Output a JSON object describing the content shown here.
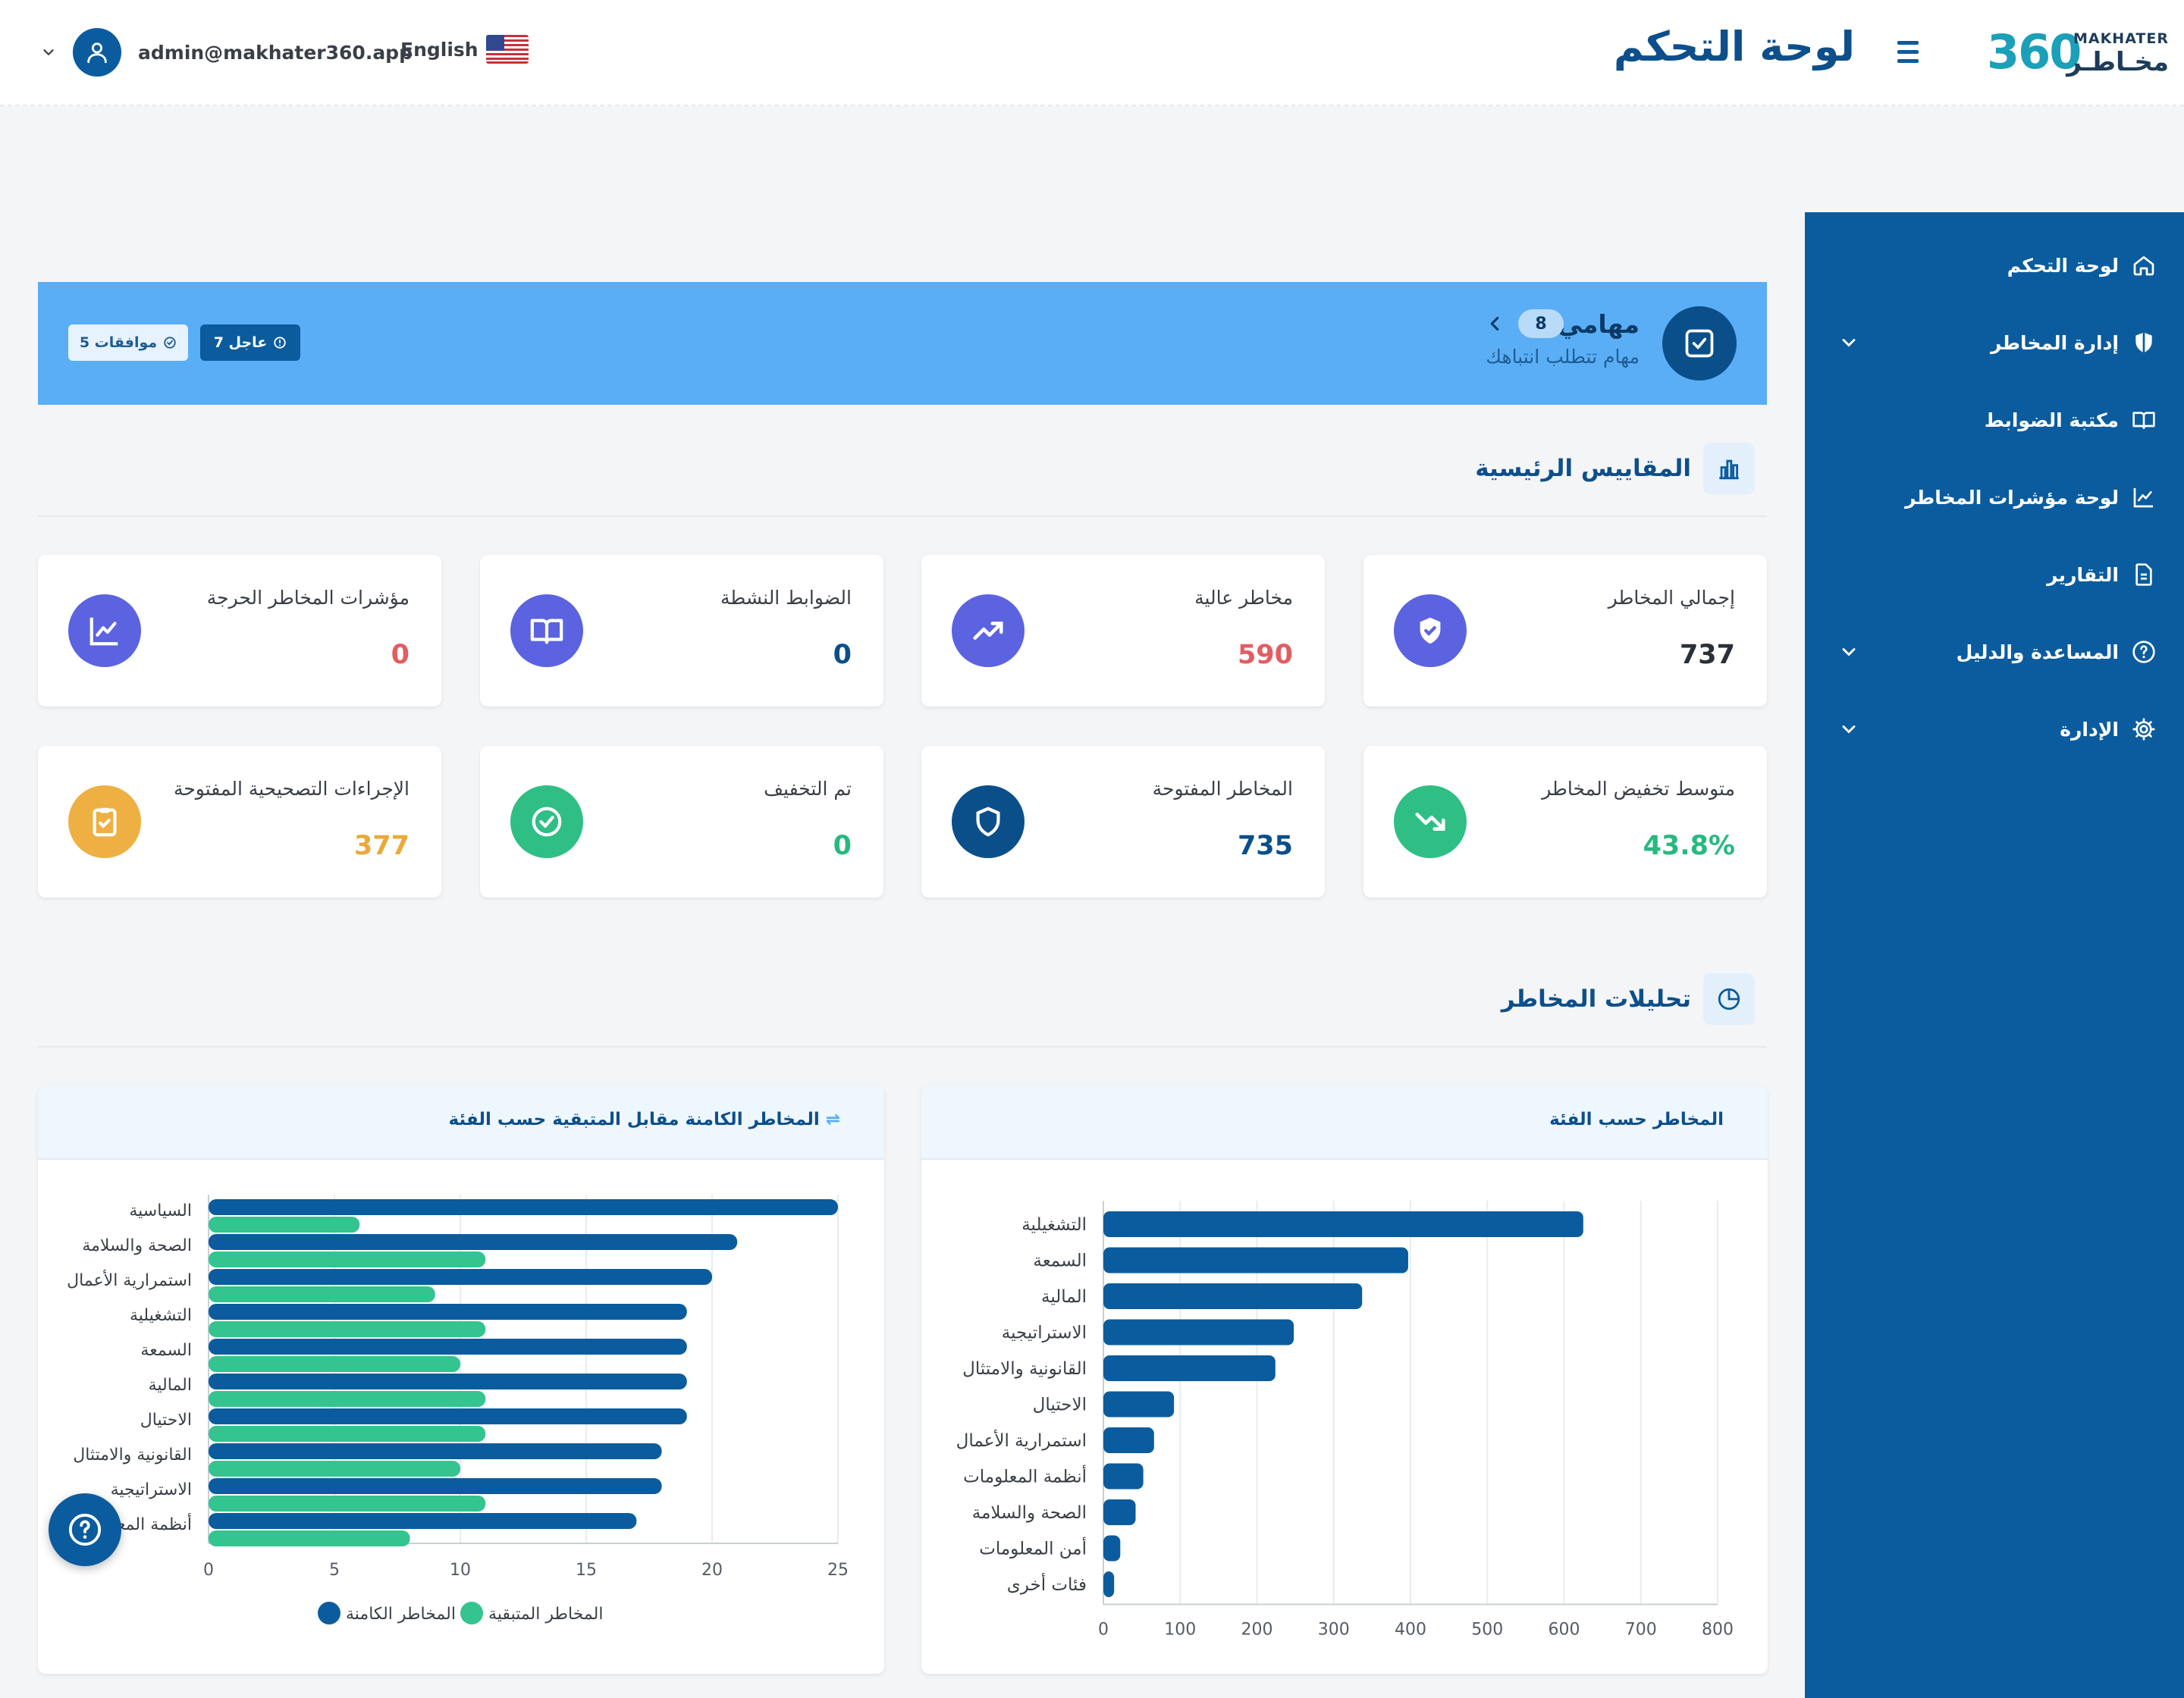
{
  "header": {
    "title": "لوحة التحكم",
    "user_email": "admin@makhater360.app",
    "language": "English",
    "logo": {
      "number": "360",
      "en": "MAKHATER",
      "ar": "مخـاطـر"
    }
  },
  "sidebar": {
    "items": [
      {
        "label": "لوحة التحكم",
        "icon": "home-icon",
        "has_submenu": false
      },
      {
        "label": "إدارة المخاطر",
        "icon": "shield-icon",
        "has_submenu": true
      },
      {
        "label": "مكتبة الضوابط",
        "icon": "book-icon",
        "has_submenu": false
      },
      {
        "label": "لوحة مؤشرات المخاطر",
        "icon": "line-chart-icon",
        "has_submenu": false
      },
      {
        "label": "التقارير",
        "icon": "document-icon",
        "has_submenu": false
      },
      {
        "label": "المساعدة والدليل",
        "icon": "help-circle-icon",
        "has_submenu": true
      },
      {
        "label": "الإدارة",
        "icon": "gear-icon",
        "has_submenu": true
      }
    ]
  },
  "tasks": {
    "title": "مهامي",
    "subtitle": "مهام تتطلب انتباهك",
    "count": "8",
    "urgent": "7 عاجل",
    "approvals": "5 موافقات"
  },
  "sections": {
    "metrics_title": "المقاييس الرئيسية",
    "analytics_title": "تحليلات المخاطر"
  },
  "metrics": [
    {
      "label": "إجمالي المخاطر",
      "value": "737",
      "value_color": "#2b2f36",
      "icon": "shield-check-icon",
      "icon_color": "#5b63e0"
    },
    {
      "label": "مخاطر عالية",
      "value": "590",
      "value_color": "#e25d61",
      "icon": "trending-up-icon",
      "icon_color": "#5b63e0"
    },
    {
      "label": "الضوابط النشطة",
      "value": "0",
      "value_color": "#0b4f8a",
      "icon": "book-open-icon",
      "icon_color": "#5b63e0"
    },
    {
      "label": "مؤشرات المخاطر الحرجة",
      "value": "0",
      "value_color": "#e25d61",
      "icon": "line-chart-icon",
      "icon_color": "#5b63e0"
    },
    {
      "label": "متوسط تخفيض المخاطر",
      "value": "43.8%",
      "value_color": "#27b97f",
      "icon": "trending-down-icon",
      "icon_color": "#2fbf85"
    },
    {
      "label": "المخاطر المفتوحة",
      "value": "735",
      "value_color": "#0b4f8a",
      "icon": "shield-outline-icon",
      "icon_color": "#0b4f8a"
    },
    {
      "label": "تم التخفيف",
      "value": "0",
      "value_color": "#27b97f",
      "icon": "check-circle-icon",
      "icon_color": "#2fbf85"
    },
    {
      "label": "الإجراءات التصحيحية المفتوحة",
      "value": "377",
      "value_color": "#eaa93a",
      "icon": "clipboard-check-icon",
      "icon_color": "#eeb043"
    }
  ],
  "charts": {
    "by_category_title": "المخاطر حسب الفئة",
    "inherent_vs_residual_title": "المخاطر الكامنة مقابل المتبقية حسب الفئة",
    "legend_inherent": "المخاطر الكامنة",
    "legend_residual": "المخاطر المتبقية"
  },
  "chart_data": [
    {
      "type": "bar",
      "orientation": "horizontal",
      "title": "المخاطر حسب الفئة",
      "categories": [
        "التشغيلية",
        "السمعة",
        "المالية",
        "الاستراتيجية",
        "القانونية والامتثال",
        "الاحتيال",
        "استمرارية الأعمال",
        "أنظمة المعلومات",
        "الصحة والسلامة",
        "أمن المعلومات",
        "فئات أخرى"
      ],
      "values": [
        625,
        397,
        337,
        248,
        224,
        92,
        66,
        52,
        42,
        22,
        14
      ],
      "xlim": [
        0,
        800
      ],
      "ticks": [
        0,
        100,
        200,
        300,
        400,
        500,
        600,
        700,
        800
      ],
      "colors": {
        "bar": "#0b5c9e"
      },
      "grid": true
    },
    {
      "type": "bar",
      "orientation": "horizontal",
      "title": "المخاطر الكامنة مقابل المتبقية حسب الفئة",
      "categories": [
        "السياسية",
        "الصحة والسلامة",
        "استمرارية الأعمال",
        "التشغيلية",
        "السمعة",
        "المالية",
        "الاحتيال",
        "القانونية والامتثال",
        "الاستراتيجية",
        "أنظمة المعلومات"
      ],
      "series": [
        {
          "name": "المخاطر الكامنة",
          "values": [
            25,
            21,
            20,
            19,
            19,
            19,
            19,
            18,
            18,
            17
          ],
          "color": "#0b5c9e"
        },
        {
          "name": "المخاطر المتبقية",
          "values": [
            6,
            11,
            9,
            11,
            10,
            11,
            11,
            10,
            11,
            8
          ],
          "color": "#34c48f"
        }
      ],
      "xlim": [
        0,
        25
      ],
      "ticks": [
        0,
        5,
        10,
        15,
        20,
        25
      ],
      "legend": "bottom",
      "grid": true
    }
  ]
}
